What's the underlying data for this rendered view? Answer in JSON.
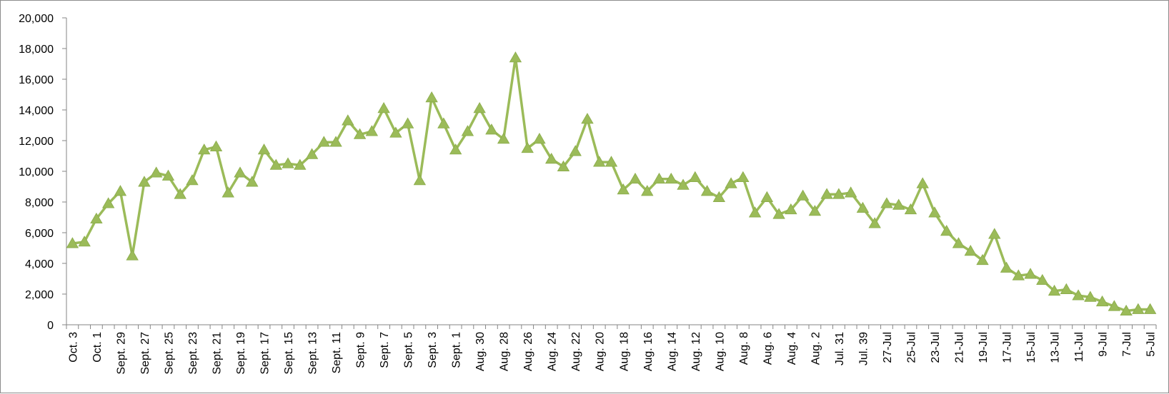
{
  "chart_data": {
    "type": "line",
    "title": "",
    "xlabel": "",
    "ylabel": "",
    "ylim": [
      0,
      20000
    ],
    "yticks": [
      0,
      2000,
      4000,
      6000,
      8000,
      10000,
      12000,
      14000,
      16000,
      18000,
      20000
    ],
    "ytick_labels": [
      "0",
      "2,000",
      "4,000",
      "6,000",
      "8,000",
      "10,000",
      "12,000",
      "14,000",
      "16,000",
      "18,000",
      "20,000"
    ],
    "grid": false,
    "legend": "none",
    "marker": "triangle",
    "color": "#9bbb59",
    "x_tick_labels": [
      "Oct. 3",
      "Oct. 1",
      "Sept. 29",
      "Sept. 27",
      "Sept. 25",
      "Sept. 23",
      "Sept. 21",
      "Sept. 19",
      "Sept. 17",
      "Sept. 15",
      "Sept. 13",
      "Sept. 11",
      "Sept. 9",
      "Sept. 7",
      "Sept. 5",
      "Sept. 3",
      "Sept. 1",
      "Aug. 30",
      "Aug. 28",
      "Aug. 26",
      "Aug. 24",
      "Aug. 22",
      "Aug. 20",
      "Aug. 18",
      "Aug. 16",
      "Aug. 14",
      "Aug. 12",
      "Aug. 10",
      "Aug. 8",
      "Aug. 6",
      "Aug. 4",
      "Aug. 2",
      "Jul. 31",
      "Jul. 39",
      "27-Jul",
      "25-Jul",
      "23-Jul",
      "21-Jul",
      "19-Jul",
      "17-Jul",
      "15-Jul",
      "13-Jul",
      "11-Jul",
      "9-Jul",
      "7-Jul",
      "5-Jul"
    ],
    "values": [
      5300,
      5400,
      6900,
      7900,
      8700,
      4500,
      9300,
      9900,
      9700,
      8500,
      9400,
      11400,
      11600,
      8600,
      9900,
      9300,
      11400,
      10400,
      10500,
      10400,
      11100,
      11900,
      11900,
      13300,
      12400,
      12600,
      14100,
      12500,
      13100,
      9400,
      14800,
      13100,
      11400,
      12600,
      14100,
      12700,
      12100,
      17400,
      11500,
      12100,
      10800,
      10300,
      11300,
      13400,
      10600,
      10600,
      8800,
      9500,
      8700,
      9500,
      9500,
      9100,
      9600,
      8700,
      8300,
      9200,
      9600,
      7300,
      8300,
      7200,
      7500,
      8400,
      7400,
      8500,
      8500,
      8600,
      7600,
      6600,
      7900,
      7800,
      7500,
      9200,
      7300,
      6100,
      5300,
      4800,
      4200,
      5900,
      3700,
      3200,
      3300,
      2900,
      2200,
      2300,
      1900,
      1800,
      1500,
      1200,
      900,
      1000,
      1000
    ]
  }
}
